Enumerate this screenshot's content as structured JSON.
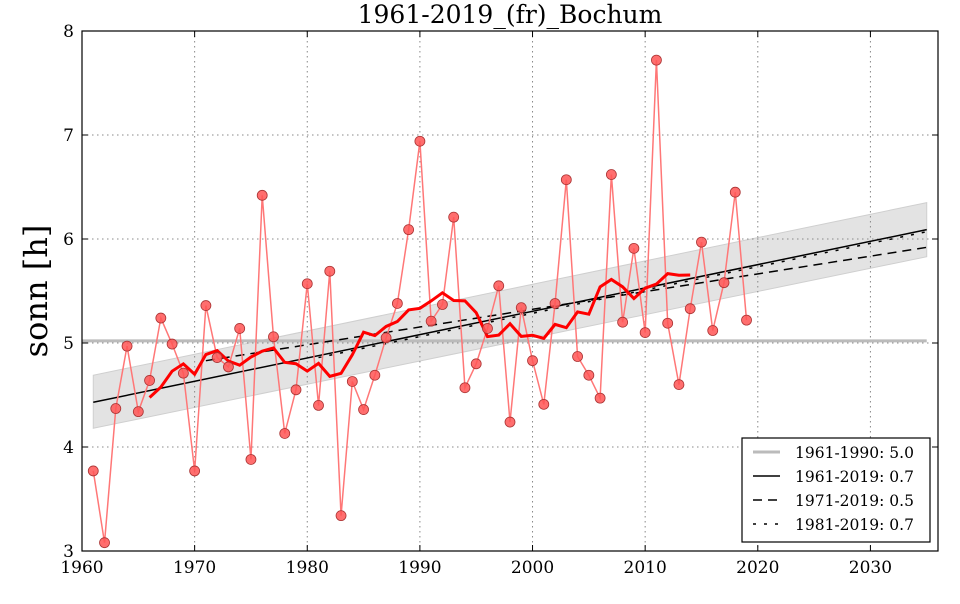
{
  "chart_data": {
    "type": "scatter",
    "title": "1961-2019_(fr)_Bochum",
    "xlabel": "",
    "ylabel": "sonn [h]",
    "xlim": [
      1960,
      2036
    ],
    "ylim": [
      3,
      8
    ],
    "xticks": [
      "1960",
      "1970",
      "1980",
      "1990",
      "2000",
      "2010",
      "2020",
      "2030"
    ],
    "yticks": [
      "3",
      "4",
      "5",
      "6",
      "7",
      "8"
    ],
    "grid": true,
    "legend_position": "bottom-right",
    "years": [
      1961,
      1962,
      1963,
      1964,
      1965,
      1966,
      1967,
      1968,
      1969,
      1970,
      1971,
      1972,
      1973,
      1974,
      1975,
      1976,
      1977,
      1978,
      1979,
      1980,
      1981,
      1982,
      1983,
      1984,
      1985,
      1986,
      1987,
      1988,
      1989,
      1990,
      1991,
      1992,
      1993,
      1994,
      1995,
      1996,
      1997,
      1998,
      1999,
      2000,
      2001,
      2002,
      2003,
      2004,
      2005,
      2006,
      2007,
      2008,
      2009,
      2010,
      2011,
      2012,
      2013,
      2014,
      2015,
      2016,
      2017,
      2018,
      2019
    ],
    "values": [
      3.77,
      3.08,
      4.37,
      4.97,
      4.34,
      4.64,
      5.24,
      4.99,
      4.71,
      3.77,
      5.36,
      4.86,
      4.77,
      5.14,
      3.88,
      6.42,
      5.06,
      4.13,
      4.55,
      5.57,
      4.4,
      5.69,
      3.34,
      4.63,
      4.36,
      4.69,
      5.05,
      5.38,
      6.09,
      6.94,
      5.21,
      5.37,
      6.21,
      4.57,
      4.8,
      5.14,
      5.55,
      4.24,
      5.34,
      4.83,
      4.41,
      5.38,
      6.57,
      4.87,
      4.69,
      4.47,
      6.62,
      5.2,
      5.91,
      5.1,
      7.72,
      5.19,
      4.6,
      5.33,
      5.97,
      5.12,
      5.58,
      6.45,
      5.22
    ],
    "moving_average_window": 11,
    "reference_line": {
      "label": "1961-1990: 5.0",
      "value": 5.02,
      "color": "#bbbbbb"
    },
    "trends": [
      {
        "label": "1961-2019: 0.7",
        "style": "solid",
        "x": [
          1961,
          2035
        ],
        "y": [
          4.43,
          6.09
        ]
      },
      {
        "label": "1971-2019: 0.5",
        "style": "dashed",
        "x": [
          1971,
          2035
        ],
        "y": [
          4.83,
          5.92
        ]
      },
      {
        "label": "1981-2019: 0.7",
        "style": "dotted",
        "x": [
          1981,
          2035
        ],
        "y": [
          4.86,
          6.07
        ]
      }
    ],
    "confidence_band": {
      "x": [
        1961,
        2035
      ],
      "lower": [
        4.18,
        5.83
      ],
      "upper": [
        4.69,
        6.35
      ]
    },
    "colors": {
      "points": "#ff5555",
      "line": "#ff7777",
      "smooth": "#ff0000",
      "band": "#e3e3e3"
    }
  }
}
